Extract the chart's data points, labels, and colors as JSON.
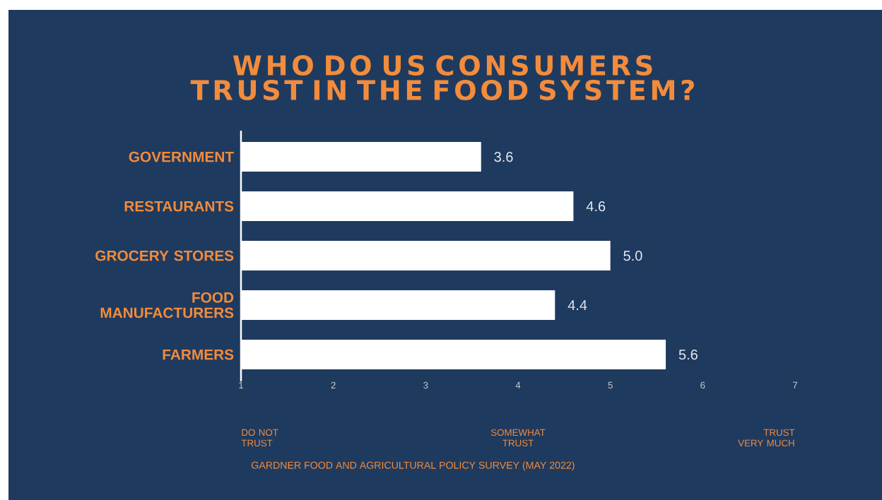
{
  "chart_data": {
    "type": "bar",
    "orientation": "horizontal",
    "title": "WHO DO US CONSUMERS TRUST IN THE FOOD SYSTEM?",
    "categories": [
      "GOVERNMENT",
      "RESTAURANTS",
      "GROCERY STORES",
      "FOOD MANUFACTURERS",
      "FARMERS"
    ],
    "values": [
      3.6,
      4.6,
      5.0,
      4.4,
      5.6
    ],
    "value_labels": [
      "3.6",
      "4.6",
      "5.0",
      "4.4",
      "5.6"
    ],
    "color": "#ffffff",
    "xlim": [
      1,
      7
    ],
    "xticks": [
      1,
      2,
      3,
      4,
      5,
      6,
      7
    ],
    "annotations": [
      "DO NOT TRUST",
      "SOMEWHAT TRUST",
      "TRUST VERY MUCH",
      "GARDNER FOOD AND AGRICULTURAL POLICY SURVEY (MAY 2022)"
    ]
  }
}
